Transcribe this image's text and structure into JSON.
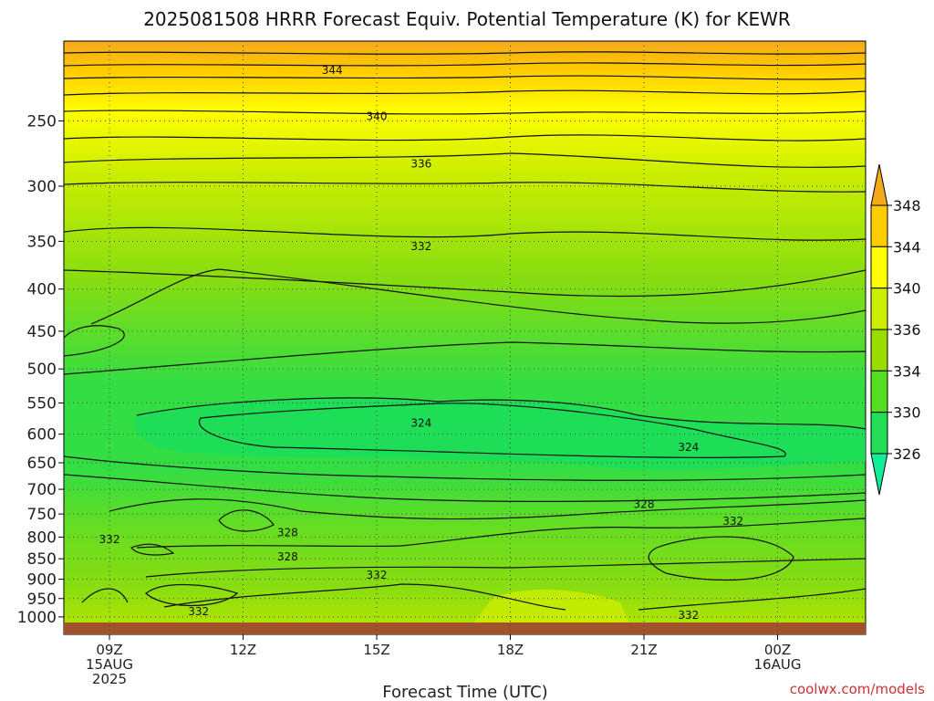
{
  "chart_data": {
    "type": "heatmap",
    "title": "2025081508 HRRR Forecast Equiv. Potential Temperature (K) for KEWR",
    "xlabel": "Forecast Time (UTC)",
    "ylabel": "",
    "credit": "coolwx.com/models",
    "y_scale": "log-pressure (hPa)",
    "ylim": [
      1050,
      200
    ],
    "y_ticks": [
      250,
      300,
      350,
      400,
      450,
      500,
      550,
      600,
      650,
      700,
      750,
      800,
      850,
      900,
      950,
      1000
    ],
    "x_ticks": [
      {
        "lines": [
          "09Z",
          "15AUG",
          "2025"
        ]
      },
      {
        "lines": [
          "12Z"
        ]
      },
      {
        "lines": [
          "15Z"
        ]
      },
      {
        "lines": [
          "18Z"
        ]
      },
      {
        "lines": [
          "21Z"
        ]
      },
      {
        "lines": [
          "00Z",
          "16AUG"
        ]
      }
    ],
    "grid": true,
    "colorbar": {
      "ticks": [
        348,
        344,
        340,
        336,
        334,
        330,
        326
      ],
      "colors": [
        "#f4a81c",
        "#ffcc00",
        "#ffff00",
        "#ccee00",
        "#99dd00",
        "#55dd22",
        "#22dd55",
        "#11ee99"
      ]
    },
    "contour_labels": [
      {
        "value": "344",
        "time": "14Z",
        "p": 217
      },
      {
        "value": "340",
        "time": "15Z",
        "p": 247
      },
      {
        "value": "336",
        "time": "16Z",
        "p": 282
      },
      {
        "value": "332",
        "time": "16Z",
        "p": 355
      },
      {
        "value": "324",
        "time": "16Z",
        "p": 582
      },
      {
        "value": "324",
        "time": "22Z",
        "p": 622
      },
      {
        "value": "328",
        "time": "21Z",
        "p": 730
      },
      {
        "value": "332",
        "time": "23Z",
        "p": 765
      },
      {
        "value": "332",
        "time": "09Z",
        "p": 805
      },
      {
        "value": "328",
        "time": "13Z",
        "p": 790
      },
      {
        "value": "328",
        "time": "13Z",
        "p": 845
      },
      {
        "value": "332",
        "time": "15Z",
        "p": 890
      },
      {
        "value": "332",
        "time": "11Z",
        "p": 985
      },
      {
        "value": "332",
        "time": "22Z",
        "p": 995
      }
    ],
    "surface": {
      "color": "#a0522d"
    }
  }
}
